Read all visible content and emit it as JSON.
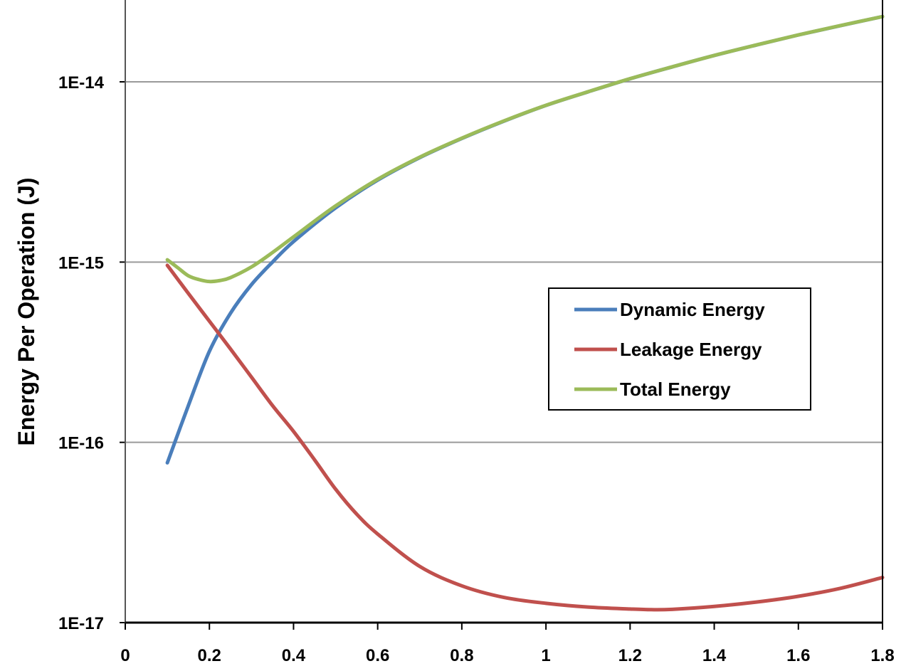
{
  "chart_data": {
    "type": "line",
    "title": "",
    "xlabel": "",
    "ylabel": "Energy Per Operation (J)",
    "xlim": [
      0,
      1.8
    ],
    "ylim": [
      1e-17,
      3e-14
    ],
    "yscale": "log",
    "grid": "horizontal",
    "legend_position": "right",
    "x_ticks": [
      0,
      0.2,
      0.4,
      0.6,
      0.8,
      1,
      1.2,
      1.4,
      1.6,
      1.8
    ],
    "x_tick_labels": [
      "0",
      "0.2",
      "0.4",
      "0.6",
      "0.8",
      "1",
      "1.2",
      "1.4",
      "1.6",
      "1.8"
    ],
    "y_ticks": [
      1e-17,
      1e-16,
      1e-15,
      1e-14
    ],
    "y_tick_labels": [
      "1E-17",
      "1E-16",
      "1E-15",
      "1E-14"
    ],
    "series": [
      {
        "name": "Dynamic Energy",
        "color": "#4a7ebb",
        "x": [
          0.1,
          0.15,
          0.2,
          0.25,
          0.3,
          0.35,
          0.4,
          0.5,
          0.6,
          0.7,
          0.8,
          0.9,
          1.0,
          1.1,
          1.2,
          1.3,
          1.4,
          1.5,
          1.6,
          1.7,
          1.8
        ],
        "y": [
          7.7e-17,
          1.6e-16,
          3.2e-16,
          5.2e-16,
          7.5e-16,
          1e-15,
          1.3e-15,
          2e-15,
          2.85e-15,
          3.8e-15,
          4.85e-15,
          6.05e-15,
          7.4e-15,
          8.8e-15,
          1.04e-14,
          1.21e-14,
          1.4e-14,
          1.6e-14,
          1.82e-14,
          2.05e-14,
          2.3e-14
        ]
      },
      {
        "name": "Leakage Energy",
        "color": "#c0504d",
        "x": [
          0.1,
          0.15,
          0.2,
          0.25,
          0.3,
          0.35,
          0.4,
          0.45,
          0.5,
          0.55,
          0.6,
          0.7,
          0.8,
          0.9,
          1.0,
          1.1,
          1.2,
          1.25,
          1.3,
          1.4,
          1.5,
          1.6,
          1.7,
          1.8
        ],
        "y": [
          9.6e-16,
          6.7e-16,
          4.7e-16,
          3.3e-16,
          2.3e-16,
          1.6e-16,
          1.15e-16,
          8e-17,
          5.5e-17,
          4e-17,
          3.1e-17,
          2.05e-17,
          1.6e-17,
          1.38e-17,
          1.28e-17,
          1.22e-17,
          1.19e-17,
          1.18e-17,
          1.185e-17,
          1.23e-17,
          1.3e-17,
          1.4e-17,
          1.55e-17,
          1.78e-17
        ]
      },
      {
        "name": "Total Energy",
        "color": "#9bbb59",
        "x": [
          0.1,
          0.125,
          0.15,
          0.175,
          0.2,
          0.225,
          0.25,
          0.3,
          0.35,
          0.4,
          0.5,
          0.6,
          0.7,
          0.8,
          0.9,
          1.0,
          1.1,
          1.2,
          1.3,
          1.4,
          1.5,
          1.6,
          1.7,
          1.8
        ],
        "y": [
          1.03e-15,
          9.3e-16,
          8.4e-16,
          8e-16,
          7.8e-16,
          7.9e-16,
          8.2e-16,
          9.4e-16,
          1.13e-15,
          1.38e-15,
          2.05e-15,
          2.88e-15,
          3.82e-15,
          4.87e-15,
          6.07e-15,
          7.41e-15,
          8.81e-15,
          1.041e-14,
          1.211e-14,
          1.401e-14,
          1.601e-14,
          1.821e-14,
          2.052e-14,
          2.302e-14
        ]
      }
    ]
  }
}
